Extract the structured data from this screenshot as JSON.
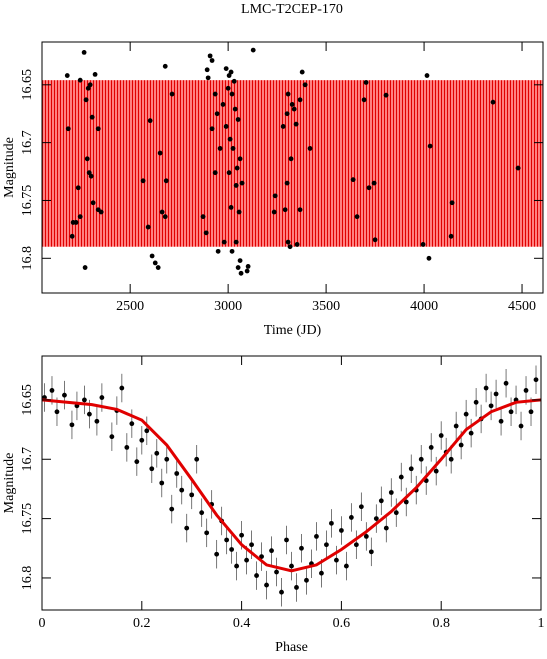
{
  "chart_data": [
    {
      "type": "scatter",
      "title": "LMC-T2CEP-170",
      "xlabel": "Time (JD)",
      "ylabel": "Magnitude",
      "xlim": [
        2050,
        4607
      ],
      "ylim": [
        16.83,
        16.613
      ],
      "xticks": [
        2500,
        3000,
        3500,
        4000,
        4500
      ],
      "yticks": [
        16.65,
        16.7,
        16.75,
        16.8
      ],
      "band": {
        "color": "#ff2020",
        "values": [
          16.646,
          16.79
        ]
      },
      "series": [
        {
          "color": "#000000",
          "x": [
            2179,
            2265,
            2245,
            2321,
            2286,
            2296,
            2184,
            2275,
            2306,
            2337,
            2281,
            2291,
            2301,
            2235,
            2209,
            2224,
            2204,
            2245,
            2311,
            2337,
            2352,
            2270,
            2679,
            2714,
            2602,
            2653,
            2566,
            2684,
            2612,
            2628,
            2643,
            2663,
            2679,
            2592,
            2893,
            2908,
            2918,
            2898,
            2934,
            2918,
            2944,
            2974,
            2959,
            2934,
            2990,
            3005,
            3015,
            3031,
            3000,
            3020,
            3036,
            3051,
            2990,
            3010,
            3025,
            3061,
            3046,
            3005,
            3071,
            3041,
            3015,
            3056,
            3041,
            3020,
            3061,
            3051,
            3066,
            3097,
            3102,
            2872,
            2888,
            3128,
            3281,
            3301,
            3327,
            3367,
            3393,
            3378,
            3306,
            3347,
            3337,
            3321,
            3301,
            3291,
            3306,
            3316,
            3352,
            3367,
            3240,
            3235,
            3418,
            3638,
            3658,
            3694,
            3704,
            3719,
            3745,
            3750,
            3806,
            3995,
            4015,
            4025,
            4031,
            4143,
            4352,
            4480,
            4138,
            2949,
            2980
          ],
          "values": [
            16.642,
            16.622,
            16.646,
            16.641,
            16.653,
            16.65,
            16.688,
            16.663,
            16.678,
            16.688,
            16.714,
            16.726,
            16.729,
            16.739,
            16.769,
            16.769,
            16.781,
            16.764,
            16.752,
            16.758,
            16.76,
            16.808,
            16.634,
            16.658,
            16.681,
            16.709,
            16.733,
            16.733,
            16.798,
            16.804,
            16.808,
            16.76,
            16.764,
            16.773,
            16.637,
            16.625,
            16.629,
            16.644,
            16.658,
            16.688,
            16.675,
            16.667,
            16.705,
            16.726,
            16.636,
            16.642,
            16.639,
            16.647,
            16.653,
            16.658,
            16.671,
            16.68,
            16.686,
            16.697,
            16.705,
            16.714,
            16.722,
            16.726,
            16.735,
            16.737,
            16.756,
            16.76,
            16.786,
            16.794,
            16.802,
            16.808,
            16.813,
            16.811,
            16.807,
            16.764,
            16.778,
            16.62,
            16.686,
            16.675,
            16.667,
            16.663,
            16.65,
            16.639,
            16.658,
            16.684,
            16.671,
            16.714,
            16.735,
            16.758,
            16.786,
            16.79,
            16.788,
            16.758,
            16.746,
            16.76,
            16.705,
            16.732,
            16.764,
            16.663,
            16.648,
            16.739,
            16.735,
            16.784,
            16.659,
            16.788,
            16.642,
            16.8,
            16.703,
            16.752,
            16.665,
            16.722,
            16.781,
            16.794,
            16.786
          ]
        }
      ]
    },
    {
      "type": "scatter",
      "xlabel": "Phase",
      "ylabel": "Magnitude",
      "xlim": [
        0,
        1
      ],
      "ylim": [
        16.827,
        16.613
      ],
      "xticks": [
        0,
        0.2,
        0.4,
        0.6,
        0.8,
        1
      ],
      "yticks": [
        16.65,
        16.7,
        16.75,
        16.8
      ],
      "series": [
        {
          "color": "#000000",
          "error": 0.012,
          "x": [
            0.005,
            0.02,
            0.03,
            0.045,
            0.06,
            0.07,
            0.085,
            0.095,
            0.11,
            0.12,
            0.14,
            0.15,
            0.16,
            0.17,
            0.18,
            0.19,
            0.2,
            0.21,
            0.22,
            0.23,
            0.24,
            0.25,
            0.26,
            0.27,
            0.28,
            0.29,
            0.3,
            0.31,
            0.32,
            0.33,
            0.34,
            0.35,
            0.36,
            0.37,
            0.38,
            0.39,
            0.4,
            0.41,
            0.42,
            0.43,
            0.44,
            0.45,
            0.46,
            0.47,
            0.48,
            0.49,
            0.5,
            0.51,
            0.52,
            0.53,
            0.54,
            0.55,
            0.56,
            0.57,
            0.58,
            0.59,
            0.6,
            0.61,
            0.62,
            0.63,
            0.64,
            0.65,
            0.66,
            0.67,
            0.68,
            0.69,
            0.7,
            0.71,
            0.72,
            0.73,
            0.74,
            0.75,
            0.76,
            0.77,
            0.78,
            0.79,
            0.8,
            0.81,
            0.82,
            0.83,
            0.84,
            0.85,
            0.86,
            0.87,
            0.88,
            0.89,
            0.9,
            0.91,
            0.92,
            0.93,
            0.94,
            0.95,
            0.96,
            0.97,
            0.98,
            0.99
          ],
          "values": [
            16.648,
            16.642,
            16.66,
            16.646,
            16.671,
            16.655,
            16.65,
            16.662,
            16.668,
            16.648,
            16.681,
            16.659,
            16.64,
            16.69,
            16.67,
            16.702,
            16.684,
            16.676,
            16.708,
            16.695,
            16.72,
            16.7,
            16.742,
            16.712,
            16.726,
            16.758,
            16.73,
            16.7,
            16.745,
            16.762,
            16.738,
            16.78,
            16.752,
            16.768,
            16.776,
            16.79,
            16.764,
            16.785,
            16.772,
            16.798,
            16.782,
            16.806,
            16.777,
            16.795,
            16.812,
            16.768,
            16.79,
            16.808,
            16.775,
            16.802,
            16.788,
            16.765,
            16.796,
            16.772,
            16.754,
            16.785,
            16.76,
            16.79,
            16.749,
            16.772,
            16.74,
            16.765,
            16.778,
            16.75,
            16.735,
            16.758,
            16.728,
            16.745,
            16.715,
            16.736,
            16.708,
            16.726,
            16.7,
            16.718,
            16.69,
            16.71,
            16.68,
            16.694,
            16.7,
            16.672,
            16.688,
            16.662,
            16.678,
            16.652,
            16.666,
            16.64,
            16.655,
            16.645,
            16.668,
            16.636,
            16.66,
            16.65,
            16.672,
            16.642,
            16.66,
            16.633
          ]
        },
        {
          "color": "#e00000",
          "style": "line",
          "x": [
            0,
            0.05,
            0.1,
            0.15,
            0.2,
            0.25,
            0.3,
            0.35,
            0.4,
            0.45,
            0.5,
            0.55,
            0.6,
            0.65,
            0.7,
            0.75,
            0.8,
            0.85,
            0.9,
            0.95,
            1
          ],
          "values": [
            16.65,
            16.652,
            16.654,
            16.658,
            16.667,
            16.688,
            16.717,
            16.747,
            16.772,
            16.789,
            16.794,
            16.789,
            16.776,
            16.761,
            16.744,
            16.724,
            16.7,
            16.675,
            16.66,
            16.652,
            16.65
          ]
        }
      ]
    }
  ]
}
